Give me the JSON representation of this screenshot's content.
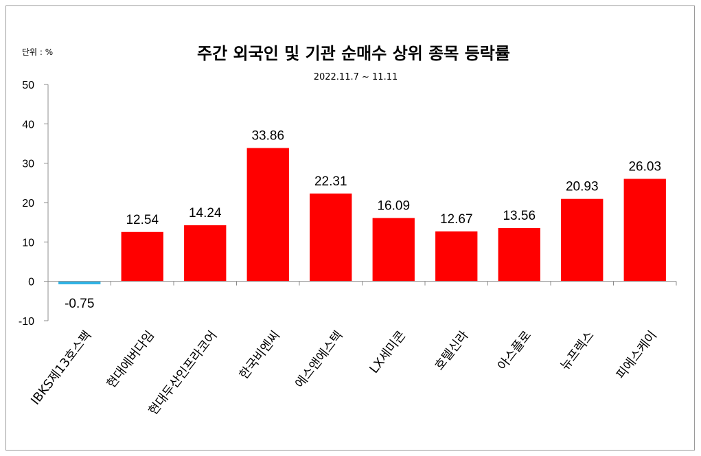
{
  "chart_data": {
    "type": "bar",
    "title": "주간 외국인 및 기관 순매수 상위 종목 등락률",
    "subtitle": "2022.11.7 ~ 11.11",
    "unit_label": "단위 : %",
    "categories": [
      "IBKS제13호스팩",
      "현대에버다임",
      "현대두산인프라코어",
      "한국비엔씨",
      "에스앤에스텍",
      "LX세미콘",
      "호텔신라",
      "아스플로",
      "뉴프렉스",
      "피에스케이"
    ],
    "values": [
      -0.75,
      12.54,
      14.24,
      33.86,
      22.31,
      16.09,
      12.67,
      13.56,
      20.93,
      26.03
    ],
    "value_labels": [
      "-0.75",
      "12.54",
      "14.24",
      "33.86",
      "22.31",
      "16.09",
      "12.67",
      "13.56",
      "20.93",
      "26.03"
    ],
    "ylim": [
      -10,
      50
    ],
    "yticks": [
      -10,
      0,
      10,
      20,
      30,
      40,
      50
    ],
    "xlabel": "",
    "ylabel": "",
    "grid": false,
    "colors": {
      "positive": "#ff0000",
      "negative": "#2eb3e6"
    }
  }
}
